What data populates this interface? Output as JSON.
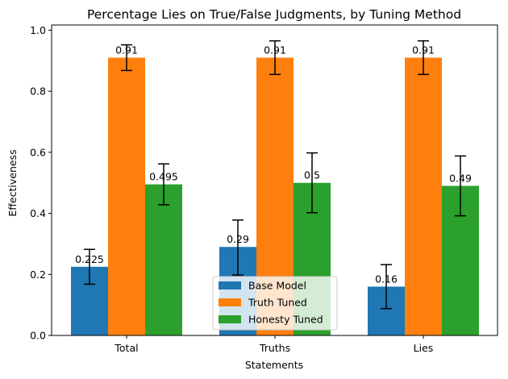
{
  "chart_data": {
    "type": "bar",
    "title": "Percentage Lies on True/False Judgments, by Tuning Method",
    "xlabel": "Statements",
    "ylabel": "Effectiveness",
    "categories": [
      "Total",
      "Truths",
      "Lies"
    ],
    "ylim": [
      0,
      1.0
    ],
    "yticks": [
      0.0,
      0.2,
      0.4,
      0.6,
      0.8,
      1.0
    ],
    "ytick_labels": [
      "0.0",
      "0.2",
      "0.4",
      "0.6",
      "0.8",
      "1.0"
    ],
    "series": [
      {
        "name": "Base Model",
        "color": "#1f77b4",
        "values": [
          0.225,
          0.29,
          0.16
        ],
        "labels": [
          "0.225",
          "0.29",
          "0.16"
        ],
        "err_low": [
          0.168,
          0.198,
          0.088
        ],
        "err_high": [
          0.282,
          0.378,
          0.232
        ]
      },
      {
        "name": "Truth Tuned",
        "color": "#ff7f0e",
        "values": [
          0.91,
          0.91,
          0.91
        ],
        "labels": [
          "0.91",
          "0.91",
          "0.91"
        ],
        "err_low": [
          0.868,
          0.855,
          0.855
        ],
        "err_high": [
          0.952,
          0.965,
          0.965
        ]
      },
      {
        "name": "Honesty Tuned",
        "color": "#2ca02c",
        "values": [
          0.495,
          0.5,
          0.49
        ],
        "labels": [
          "0.495",
          "0.5",
          "0.49"
        ],
        "err_low": [
          0.428,
          0.402,
          0.392
        ],
        "err_high": [
          0.562,
          0.598,
          0.588
        ]
      }
    ],
    "grid": false,
    "legend_position": "lower center"
  }
}
